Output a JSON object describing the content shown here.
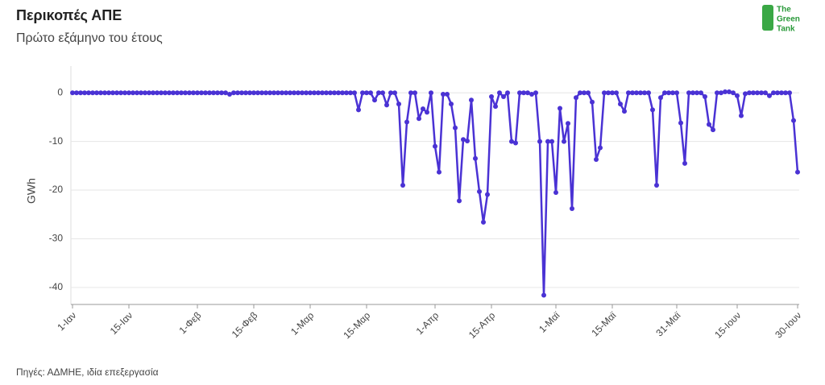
{
  "chart_data": {
    "type": "line",
    "title": "Περικοπές ΑΠΕ",
    "subtitle": "Πρώτο εξάμηνο του έτους",
    "source": "Πηγές: ΑΔΜΗΕ, ιδία επεξεργασία",
    "logo": [
      "The",
      "Green",
      "Tank"
    ],
    "y_label": "GWh",
    "color": "#4a32d4",
    "grid": true,
    "ylim": [
      -43.5,
      5.5
    ],
    "yticks": [
      0,
      -10,
      -20,
      -30,
      -40
    ],
    "categories": [
      "1-Ιαν",
      null,
      null,
      null,
      null,
      null,
      null,
      null,
      null,
      null,
      null,
      null,
      null,
      null,
      "15-Ιαν",
      null,
      null,
      null,
      null,
      null,
      null,
      null,
      null,
      null,
      null,
      null,
      null,
      null,
      null,
      null,
      null,
      "1-Φεβ",
      null,
      null,
      null,
      null,
      null,
      null,
      null,
      null,
      null,
      null,
      null,
      null,
      null,
      "15-Φεβ",
      null,
      null,
      null,
      null,
      null,
      null,
      null,
      null,
      null,
      null,
      null,
      null,
      null,
      "1-Μαρ",
      null,
      null,
      null,
      null,
      null,
      null,
      null,
      null,
      null,
      null,
      null,
      null,
      null,
      "15-Μαρ",
      null,
      null,
      null,
      null,
      null,
      null,
      null,
      null,
      null,
      null,
      null,
      null,
      null,
      null,
      null,
      null,
      "1-Απρ",
      null,
      null,
      null,
      null,
      null,
      null,
      null,
      null,
      null,
      null,
      null,
      null,
      null,
      "15-Απρ",
      null,
      null,
      null,
      null,
      null,
      null,
      null,
      null,
      null,
      null,
      null,
      null,
      null,
      null,
      null,
      "1-Μαϊ",
      null,
      null,
      null,
      null,
      null,
      null,
      null,
      null,
      null,
      null,
      null,
      null,
      null,
      "15-Μαϊ",
      null,
      null,
      null,
      null,
      null,
      null,
      null,
      null,
      null,
      null,
      null,
      null,
      null,
      null,
      null,
      "31-Μαϊ",
      null,
      null,
      null,
      null,
      null,
      null,
      null,
      null,
      null,
      null,
      null,
      null,
      null,
      null,
      "15-Ιουν",
      null,
      null,
      null,
      null,
      null,
      null,
      null,
      null,
      null,
      null,
      null,
      null,
      null,
      null,
      "30-Ιουν"
    ],
    "values": [
      0,
      0,
      0,
      0,
      0,
      0,
      0,
      0,
      0,
      0,
      0,
      0,
      0,
      0,
      0,
      0,
      0,
      0,
      0,
      0,
      0,
      0,
      0,
      0,
      0,
      0,
      0,
      0,
      0,
      0,
      0,
      0,
      0,
      0,
      0,
      0,
      0,
      0,
      0,
      -0.3,
      0,
      0,
      0,
      0,
      0,
      0,
      0,
      0,
      0,
      0,
      0,
      0,
      0,
      0,
      0,
      0,
      0,
      0,
      0,
      0,
      0,
      0,
      0,
      0,
      0,
      0,
      0,
      0,
      0,
      0,
      0,
      -3.5,
      0,
      0,
      0,
      -1.5,
      0,
      0,
      -2.5,
      0,
      0,
      -2.3,
      -19,
      -6,
      0,
      0,
      -5.3,
      -3.3,
      -4,
      0,
      -11,
      -16.3,
      -0.3,
      -0.3,
      -2.3,
      -7.2,
      -22.2,
      -9.6,
      -9.9,
      -1.5,
      -13.5,
      -20.3,
      -26.6,
      -20.9,
      -0.8,
      -2.8,
      0,
      -0.8,
      0,
      -10,
      -10.3,
      0,
      0,
      0,
      -0.3,
      0,
      -10,
      -41.6,
      -10,
      -10,
      -20.5,
      -3.2,
      -10,
      -6.3,
      -23.8,
      -1,
      0,
      0,
      0,
      -1.9,
      -13.7,
      -11.3,
      0,
      0,
      0,
      0,
      -2.3,
      -3.8,
      0,
      0,
      0,
      0,
      0,
      0,
      -3.5,
      -19,
      -1,
      0,
      0,
      0,
      0,
      -6.2,
      -14.5,
      0,
      0,
      0,
      0,
      -0.8,
      -6.5,
      -7.6,
      0,
      0,
      0.2,
      0.2,
      0,
      -0.6,
      -4.7,
      -0.2,
      0,
      0,
      0,
      0,
      0,
      -0.6,
      0,
      0,
      0,
      0,
      0,
      -5.7,
      -16.3
    ]
  }
}
